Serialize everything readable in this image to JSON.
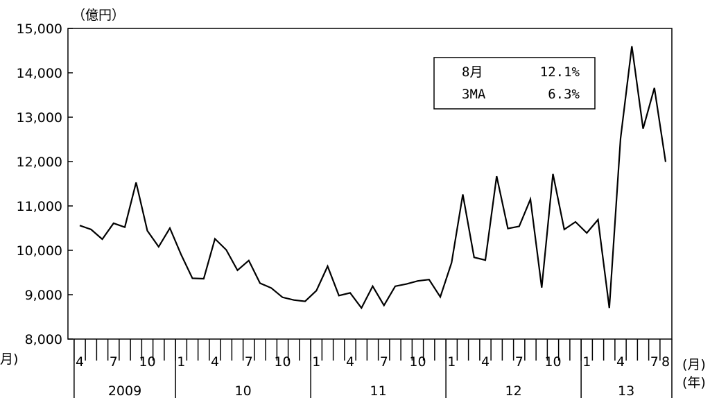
{
  "chart_data": {
    "type": "line",
    "title": "",
    "ylabel": "（億円）",
    "xlabel_month": "(月)",
    "xlabel_year": "(年)",
    "left_fragment": "月)",
    "ylim": [
      8000,
      15000
    ],
    "yticks": [
      "8,000",
      "9,000",
      "10,000",
      "11,000",
      "12,000",
      "13,000",
      "14,000",
      "15,000"
    ],
    "grid": false,
    "legend_box": {
      "row1_label": "8月",
      "row1_value": "12.1%",
      "row2_label": "3MA",
      "row2_value": "6.3%",
      "placement": "top-right"
    },
    "month_labels": [
      {
        "idx": 0,
        "text": "4"
      },
      {
        "idx": 3,
        "text": "7"
      },
      {
        "idx": 6,
        "text": "10"
      },
      {
        "idx": 9,
        "text": "1"
      },
      {
        "idx": 12,
        "text": "4"
      },
      {
        "idx": 15,
        "text": "7"
      },
      {
        "idx": 18,
        "text": "10"
      },
      {
        "idx": 21,
        "text": "1"
      },
      {
        "idx": 24,
        "text": "4"
      },
      {
        "idx": 27,
        "text": "7"
      },
      {
        "idx": 30,
        "text": "10"
      },
      {
        "idx": 33,
        "text": "1"
      },
      {
        "idx": 36,
        "text": "4"
      },
      {
        "idx": 39,
        "text": "7"
      },
      {
        "idx": 42,
        "text": "10"
      },
      {
        "idx": 45,
        "text": "1"
      },
      {
        "idx": 48,
        "text": "4"
      },
      {
        "idx": 51,
        "text": "7"
      },
      {
        "idx": 52,
        "text": "8"
      }
    ],
    "years": [
      {
        "label": "2009",
        "start": 0,
        "end": 8
      },
      {
        "label": "10",
        "start": 9,
        "end": 20
      },
      {
        "label": "11",
        "start": 21,
        "end": 32
      },
      {
        "label": "12",
        "start": 33,
        "end": 44
      },
      {
        "label": "13",
        "start": 45,
        "end": 52
      }
    ],
    "series": [
      {
        "values": [
          10560,
          10470,
          10250,
          10610,
          10520,
          11530,
          10440,
          10080,
          10500,
          9900,
          9370,
          9360,
          10260,
          10010,
          9550,
          9770,
          9260,
          9150,
          8940,
          8880,
          8850,
          9090,
          9640,
          8980,
          9040,
          8700,
          9190,
          8760,
          9190,
          9240,
          9310,
          9340,
          8950,
          9720,
          11260,
          9840,
          9780,
          11670,
          10490,
          10540,
          11150,
          9160,
          11720,
          10470,
          10640,
          10390,
          10690,
          8700,
          12520,
          14600,
          12740,
          13660,
          11990
        ]
      }
    ]
  }
}
